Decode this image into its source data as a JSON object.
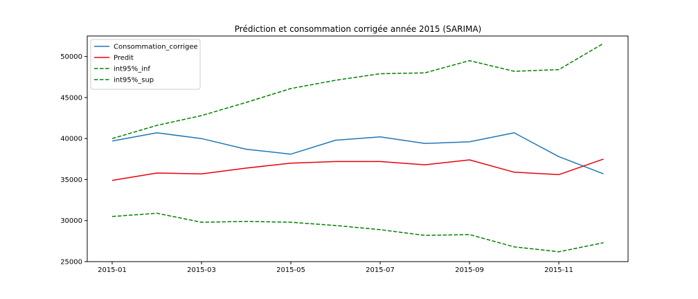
{
  "chart_data": {
    "type": "line",
    "title": "Prédiction et consommation corrigée année 2015 (SARIMA)",
    "xlabel": "",
    "ylabel": "",
    "x": [
      "2015-01",
      "2015-02",
      "2015-03",
      "2015-04",
      "2015-05",
      "2015-06",
      "2015-07",
      "2015-08",
      "2015-09",
      "2015-10",
      "2015-11",
      "2015-12"
    ],
    "x_ticks": [
      "2015-01",
      "2015-03",
      "2015-05",
      "2015-07",
      "2015-09",
      "2015-11"
    ],
    "y_ticks": [
      25000,
      30000,
      35000,
      40000,
      45000,
      50000
    ],
    "ylim": [
      25000,
      52500
    ],
    "grid": false,
    "legend_position": "top-left",
    "series": [
      {
        "name": "Consommation_corrigee",
        "color": "#1f77b4",
        "style": "solid",
        "values": [
          39700,
          40700,
          40000,
          38700,
          38100,
          39800,
          40200,
          39400,
          39600,
          40700,
          37800,
          35700
        ]
      },
      {
        "name": "Predit",
        "color": "#e8000b",
        "style": "solid",
        "values": [
          34900,
          35800,
          35700,
          36400,
          37000,
          37200,
          37200,
          36800,
          37400,
          35900,
          35600,
          37500
        ]
      },
      {
        "name": "int95%_inf",
        "color": "#008000",
        "style": "dashed",
        "values": [
          30500,
          30900,
          29800,
          29900,
          29800,
          29400,
          28900,
          28200,
          28300,
          26800,
          26200,
          27300
        ]
      },
      {
        "name": "int95%_sup",
        "color": "#008000",
        "style": "dashed",
        "values": [
          40000,
          41600,
          42800,
          44400,
          46100,
          47100,
          47900,
          48000,
          49500,
          48200,
          48400,
          51600
        ]
      }
    ]
  }
}
